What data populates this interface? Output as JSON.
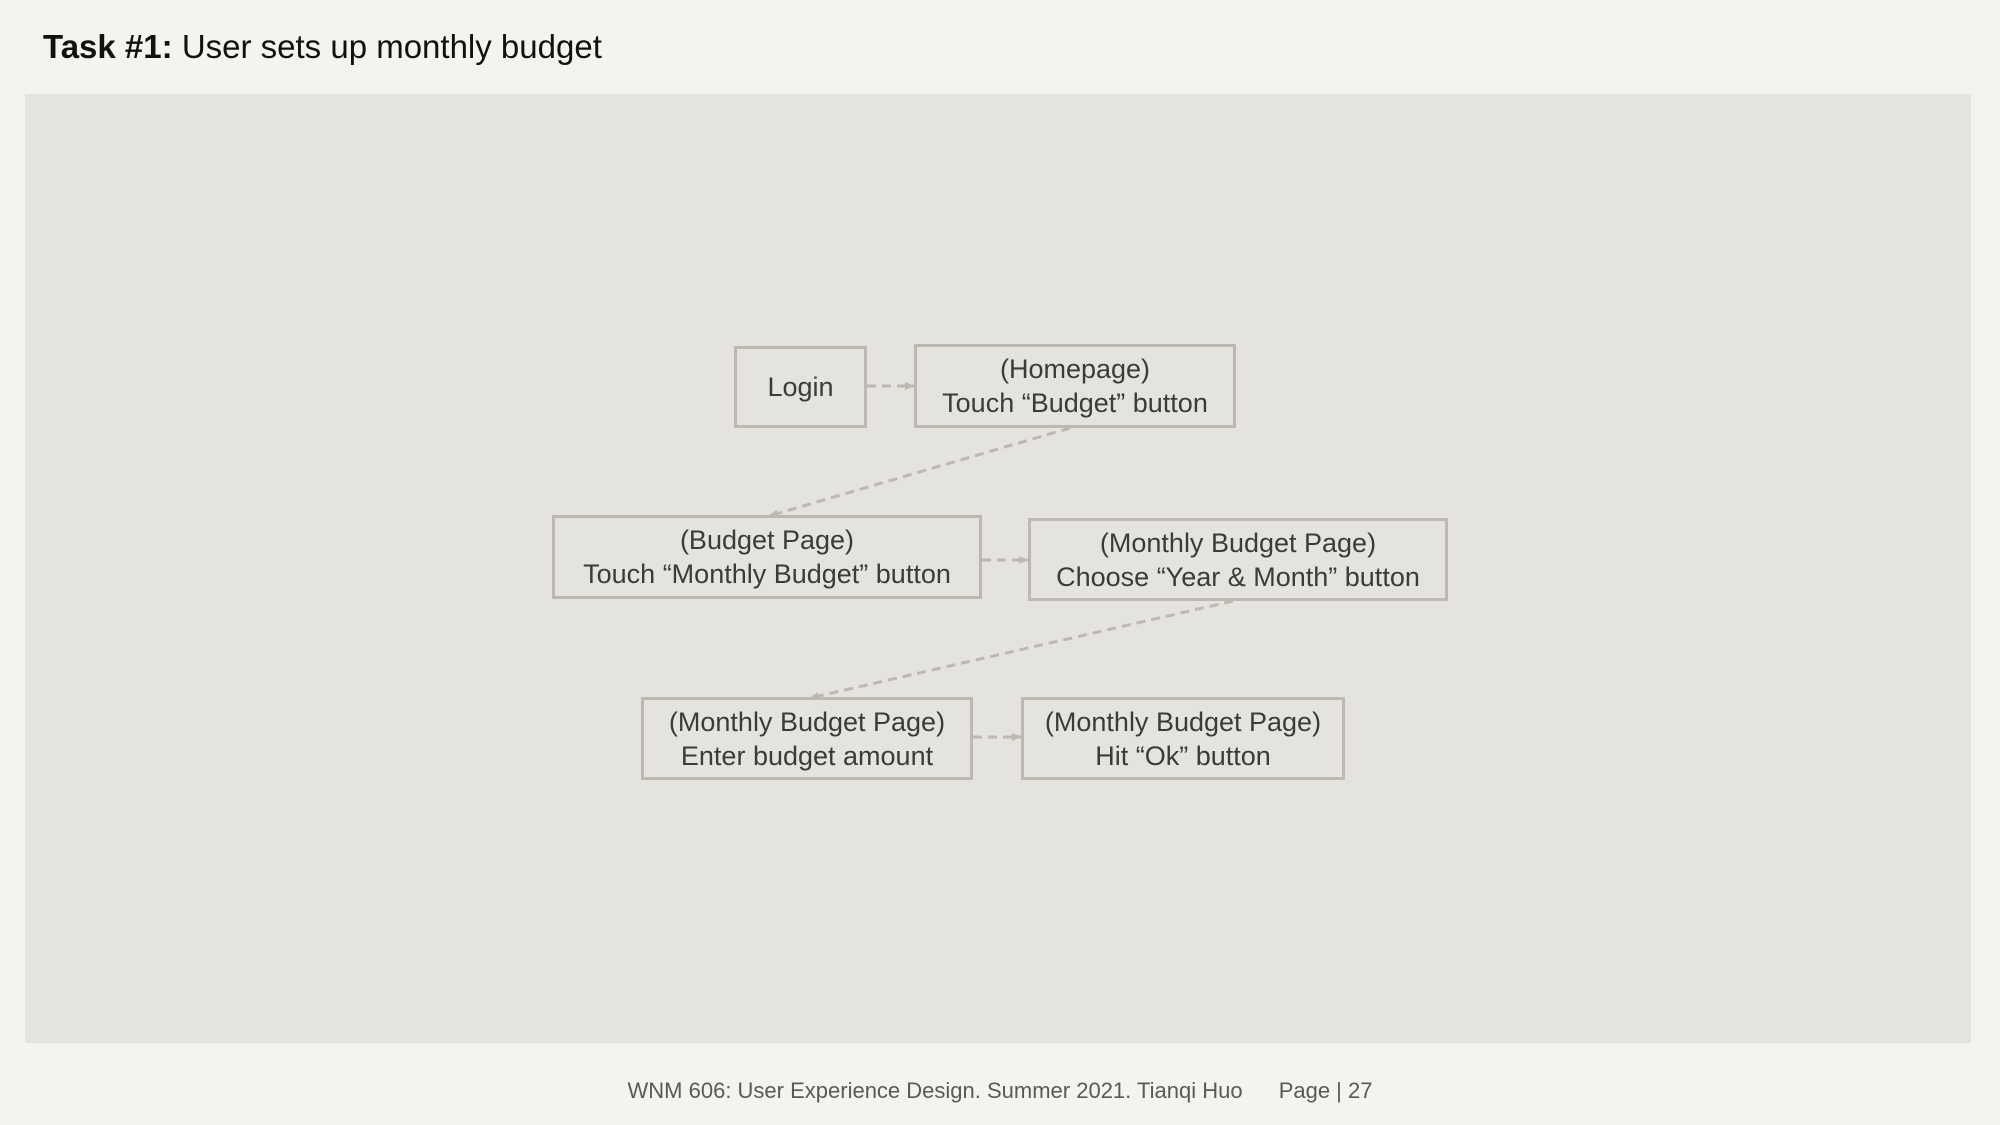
{
  "header": {
    "task_label": "Task #1:",
    "task_title": "User sets up monthly budget"
  },
  "flow": {
    "login": {
      "line1": "Login"
    },
    "homepage": {
      "line1": "(Homepage)",
      "line2": "Touch “Budget” button"
    },
    "budget_page": {
      "line1": "(Budget Page)",
      "line2": "Touch “Monthly Budget” button"
    },
    "monthly_year_month": {
      "line1": "(Monthly Budget Page)",
      "line2": "Choose “Year & Month” button"
    },
    "monthly_enter_amount": {
      "line1": "(Monthly Budget Page)",
      "line2": "Enter budget amount"
    },
    "monthly_hit_ok": {
      "line1": "(Monthly Budget Page)",
      "line2": "Hit “Ok” button"
    }
  },
  "footer": {
    "course": "WNM 606: User Experience Design. Summer 2021. Tianqi Huo",
    "page": "Page | 27"
  },
  "colors": {
    "background": "#f4f4ef",
    "panel": "#e4e3dd",
    "box_border": "#bdb9b2",
    "arrow": "#bdb9b2",
    "text": "#3d3b38"
  }
}
